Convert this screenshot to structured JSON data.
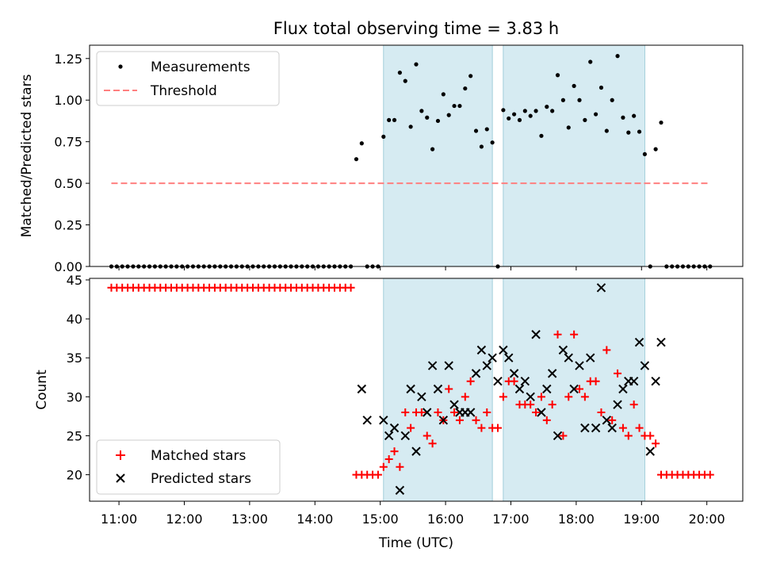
{
  "chart_data": [
    {
      "type": "scatter",
      "title": "Flux total observing time = 3.83 h",
      "xlabel": "",
      "ylabel": "Matched/Predicted stars",
      "ylim": [
        0,
        1.33
      ],
      "yticks": [
        "0.00",
        "0.25",
        "0.50",
        "0.75",
        "1.00",
        "1.25"
      ],
      "shaded_intervals": [
        [
          "15:03",
          "16:43"
        ],
        [
          "16:53",
          "19:03"
        ]
      ],
      "legend": {
        "location": "upper left",
        "entries": [
          "Measurements",
          "Threshold"
        ]
      },
      "series": [
        {
          "name": "Measurements",
          "marker": "dot",
          "color": "#000000",
          "x": [
            "10:53",
            "10:58",
            "11:03",
            "11:08",
            "11:13",
            "11:18",
            "11:23",
            "11:28",
            "11:33",
            "11:38",
            "11:43",
            "11:48",
            "11:53",
            "11:58",
            "12:03",
            "12:08",
            "12:13",
            "12:18",
            "12:23",
            "12:28",
            "12:33",
            "12:38",
            "12:43",
            "12:48",
            "12:53",
            "12:58",
            "13:03",
            "13:08",
            "13:13",
            "13:18",
            "13:23",
            "13:28",
            "13:33",
            "13:38",
            "13:43",
            "13:48",
            "13:53",
            "13:58",
            "14:03",
            "14:08",
            "14:13",
            "14:18",
            "14:23",
            "14:28",
            "14:33",
            "14:38",
            "14:43",
            "14:48",
            "14:53",
            "14:58",
            "15:03",
            "15:08",
            "15:13",
            "15:18",
            "15:23",
            "15:28",
            "15:33",
            "15:38",
            "15:43",
            "15:48",
            "15:53",
            "15:58",
            "16:03",
            "16:08",
            "16:13",
            "16:18",
            "16:23",
            "16:28",
            "16:33",
            "16:38",
            "16:43",
            "16:48",
            "16:53",
            "16:58",
            "17:03",
            "17:08",
            "17:13",
            "17:18",
            "17:23",
            "17:28",
            "17:33",
            "17:38",
            "17:43",
            "17:48",
            "17:53",
            "17:58",
            "18:03",
            "18:08",
            "18:13",
            "18:18",
            "18:23",
            "18:28",
            "18:33",
            "18:38",
            "18:43",
            "18:48",
            "18:53",
            "18:58",
            "19:03",
            "19:08",
            "19:13",
            "19:18",
            "19:23",
            "19:28",
            "19:33",
            "19:38",
            "19:43",
            "19:48",
            "19:53",
            "19:58",
            "20:03"
          ],
          "y": [
            0,
            0,
            0,
            0,
            0,
            0,
            0,
            0,
            0,
            0,
            0,
            0,
            0,
            0,
            0,
            0,
            0,
            0,
            0,
            0,
            0,
            0,
            0,
            0,
            0,
            0,
            0,
            0,
            0,
            0,
            0,
            0,
            0,
            0,
            0,
            0,
            0,
            0,
            0,
            0,
            0,
            0,
            0,
            0,
            0,
            0.645,
            0.74,
            0,
            0,
            0,
            0.78,
            0.88,
            0.88,
            1.165,
            1.115,
            0.84,
            1.215,
            0.935,
            0.895,
            0.705,
            0.875,
            1.035,
            0.91,
            0.965,
            0.965,
            1.07,
            1.145,
            0.815,
            0.72,
            0.825,
            0.745,
            0,
            0.94,
            0.89,
            0.915,
            0.88,
            0.935,
            0.905,
            0.935,
            0.785,
            0.96,
            0.935,
            1.15,
            1.0,
            0.835,
            1.085,
            1.0,
            0.88,
            1.23,
            0.915,
            1.075,
            0.815,
            1.0,
            1.265,
            0.895,
            0.805,
            0.905,
            0.81,
            0.675,
            0,
            0.705,
            0.865,
            0,
            0,
            0,
            0,
            0,
            0,
            0,
            0,
            0
          ]
        },
        {
          "name": "Threshold",
          "style": "dashed",
          "color": "#ff7f7f",
          "x": [
            "10:53",
            "20:03"
          ],
          "y": [
            0.5,
            0.5
          ]
        }
      ]
    },
    {
      "type": "scatter",
      "title": "",
      "xlabel": "Time (UTC)",
      "ylabel": "Count",
      "ylim": [
        16.6,
        45.2
      ],
      "yticks": [
        "20",
        "25",
        "30",
        "35",
        "40",
        "45"
      ],
      "xlim": [
        "10:33",
        "20:33"
      ],
      "xticks": [
        "11:00",
        "12:00",
        "13:00",
        "14:00",
        "15:00",
        "16:00",
        "17:00",
        "18:00",
        "19:00",
        "20:00"
      ],
      "shaded_intervals": [
        [
          "15:03",
          "16:43"
        ],
        [
          "16:53",
          "19:03"
        ]
      ],
      "legend": {
        "location": "lower left",
        "entries": [
          "Matched stars",
          "Predicted stars"
        ]
      },
      "series": [
        {
          "name": "Matched stars",
          "marker": "plus",
          "color": "#ff0000",
          "x": [
            "10:53",
            "10:58",
            "11:03",
            "11:08",
            "11:13",
            "11:18",
            "11:23",
            "11:28",
            "11:33",
            "11:38",
            "11:43",
            "11:48",
            "11:53",
            "11:58",
            "12:03",
            "12:08",
            "12:13",
            "12:18",
            "12:23",
            "12:28",
            "12:33",
            "12:38",
            "12:43",
            "12:48",
            "12:53",
            "12:58",
            "13:03",
            "13:08",
            "13:13",
            "13:18",
            "13:23",
            "13:28",
            "13:33",
            "13:38",
            "13:43",
            "13:48",
            "13:53",
            "13:58",
            "14:03",
            "14:08",
            "14:13",
            "14:18",
            "14:23",
            "14:28",
            "14:33",
            "14:38",
            "14:43",
            "14:48",
            "14:53",
            "14:58",
            "15:03",
            "15:08",
            "15:13",
            "15:18",
            "15:23",
            "15:28",
            "15:33",
            "15:38",
            "15:43",
            "15:48",
            "15:53",
            "15:58",
            "16:03",
            "16:08",
            "16:13",
            "16:18",
            "16:23",
            "16:28",
            "16:33",
            "16:38",
            "16:43",
            "16:48",
            "16:53",
            "16:58",
            "17:03",
            "17:08",
            "17:13",
            "17:18",
            "17:23",
            "17:28",
            "17:33",
            "17:38",
            "17:43",
            "17:48",
            "17:53",
            "17:58",
            "18:03",
            "18:08",
            "18:13",
            "18:18",
            "18:23",
            "18:28",
            "18:33",
            "18:38",
            "18:43",
            "18:48",
            "18:53",
            "18:58",
            "19:03",
            "19:08",
            "19:13",
            "19:18",
            "19:23",
            "19:28",
            "19:33",
            "19:38",
            "19:43",
            "19:48",
            "19:53",
            "19:58",
            "20:03"
          ],
          "y": [
            44,
            44,
            44,
            44,
            44,
            44,
            44,
            44,
            44,
            44,
            44,
            44,
            44,
            44,
            44,
            44,
            44,
            44,
            44,
            44,
            44,
            44,
            44,
            44,
            44,
            44,
            44,
            44,
            44,
            44,
            44,
            44,
            44,
            44,
            44,
            44,
            44,
            44,
            44,
            44,
            44,
            44,
            44,
            44,
            44,
            20,
            20,
            20,
            20,
            20,
            21,
            22,
            23,
            21,
            28,
            26,
            28,
            28,
            25,
            24,
            28,
            27,
            31,
            28,
            27,
            30,
            32,
            27,
            26,
            28,
            26,
            26,
            30,
            32,
            32,
            29,
            29,
            29,
            28,
            30,
            27,
            29,
            38,
            25,
            30,
            38,
            31,
            30,
            32,
            32,
            28,
            36,
            27,
            33,
            26,
            25,
            29,
            26,
            25,
            25,
            24,
            20,
            20,
            20,
            20,
            20,
            20,
            20,
            20,
            20,
            20
          ]
        },
        {
          "name": "Predicted stars",
          "marker": "x",
          "color": "#000000",
          "x": [
            "14:43",
            "14:48",
            "15:03",
            "15:08",
            "15:13",
            "15:18",
            "15:23",
            "15:28",
            "15:33",
            "15:38",
            "15:43",
            "15:48",
            "15:53",
            "15:58",
            "16:03",
            "16:08",
            "16:13",
            "16:18",
            "16:23",
            "16:28",
            "16:33",
            "16:38",
            "16:43",
            "16:48",
            "16:53",
            "16:58",
            "17:03",
            "17:08",
            "17:13",
            "17:18",
            "17:23",
            "17:28",
            "17:33",
            "17:38",
            "17:43",
            "17:48",
            "17:53",
            "17:58",
            "18:03",
            "18:08",
            "18:13",
            "18:18",
            "18:23",
            "18:28",
            "18:33",
            "18:38",
            "18:43",
            "18:48",
            "18:53",
            "18:58",
            "19:03",
            "19:08",
            "19:13",
            "19:18"
          ],
          "y": [
            31,
            27,
            27,
            25,
            26,
            18,
            25,
            31,
            23,
            30,
            28,
            34,
            31,
            27,
            34,
            29,
            28,
            28,
            28,
            33,
            36,
            34,
            35,
            32,
            36,
            35,
            33,
            31,
            32,
            30,
            38,
            28,
            31,
            33,
            25,
            36,
            35,
            31,
            34,
            26,
            35,
            26,
            44,
            27,
            26,
            29,
            31,
            32,
            32,
            37,
            34,
            23,
            32,
            37
          ]
        }
      ]
    }
  ]
}
